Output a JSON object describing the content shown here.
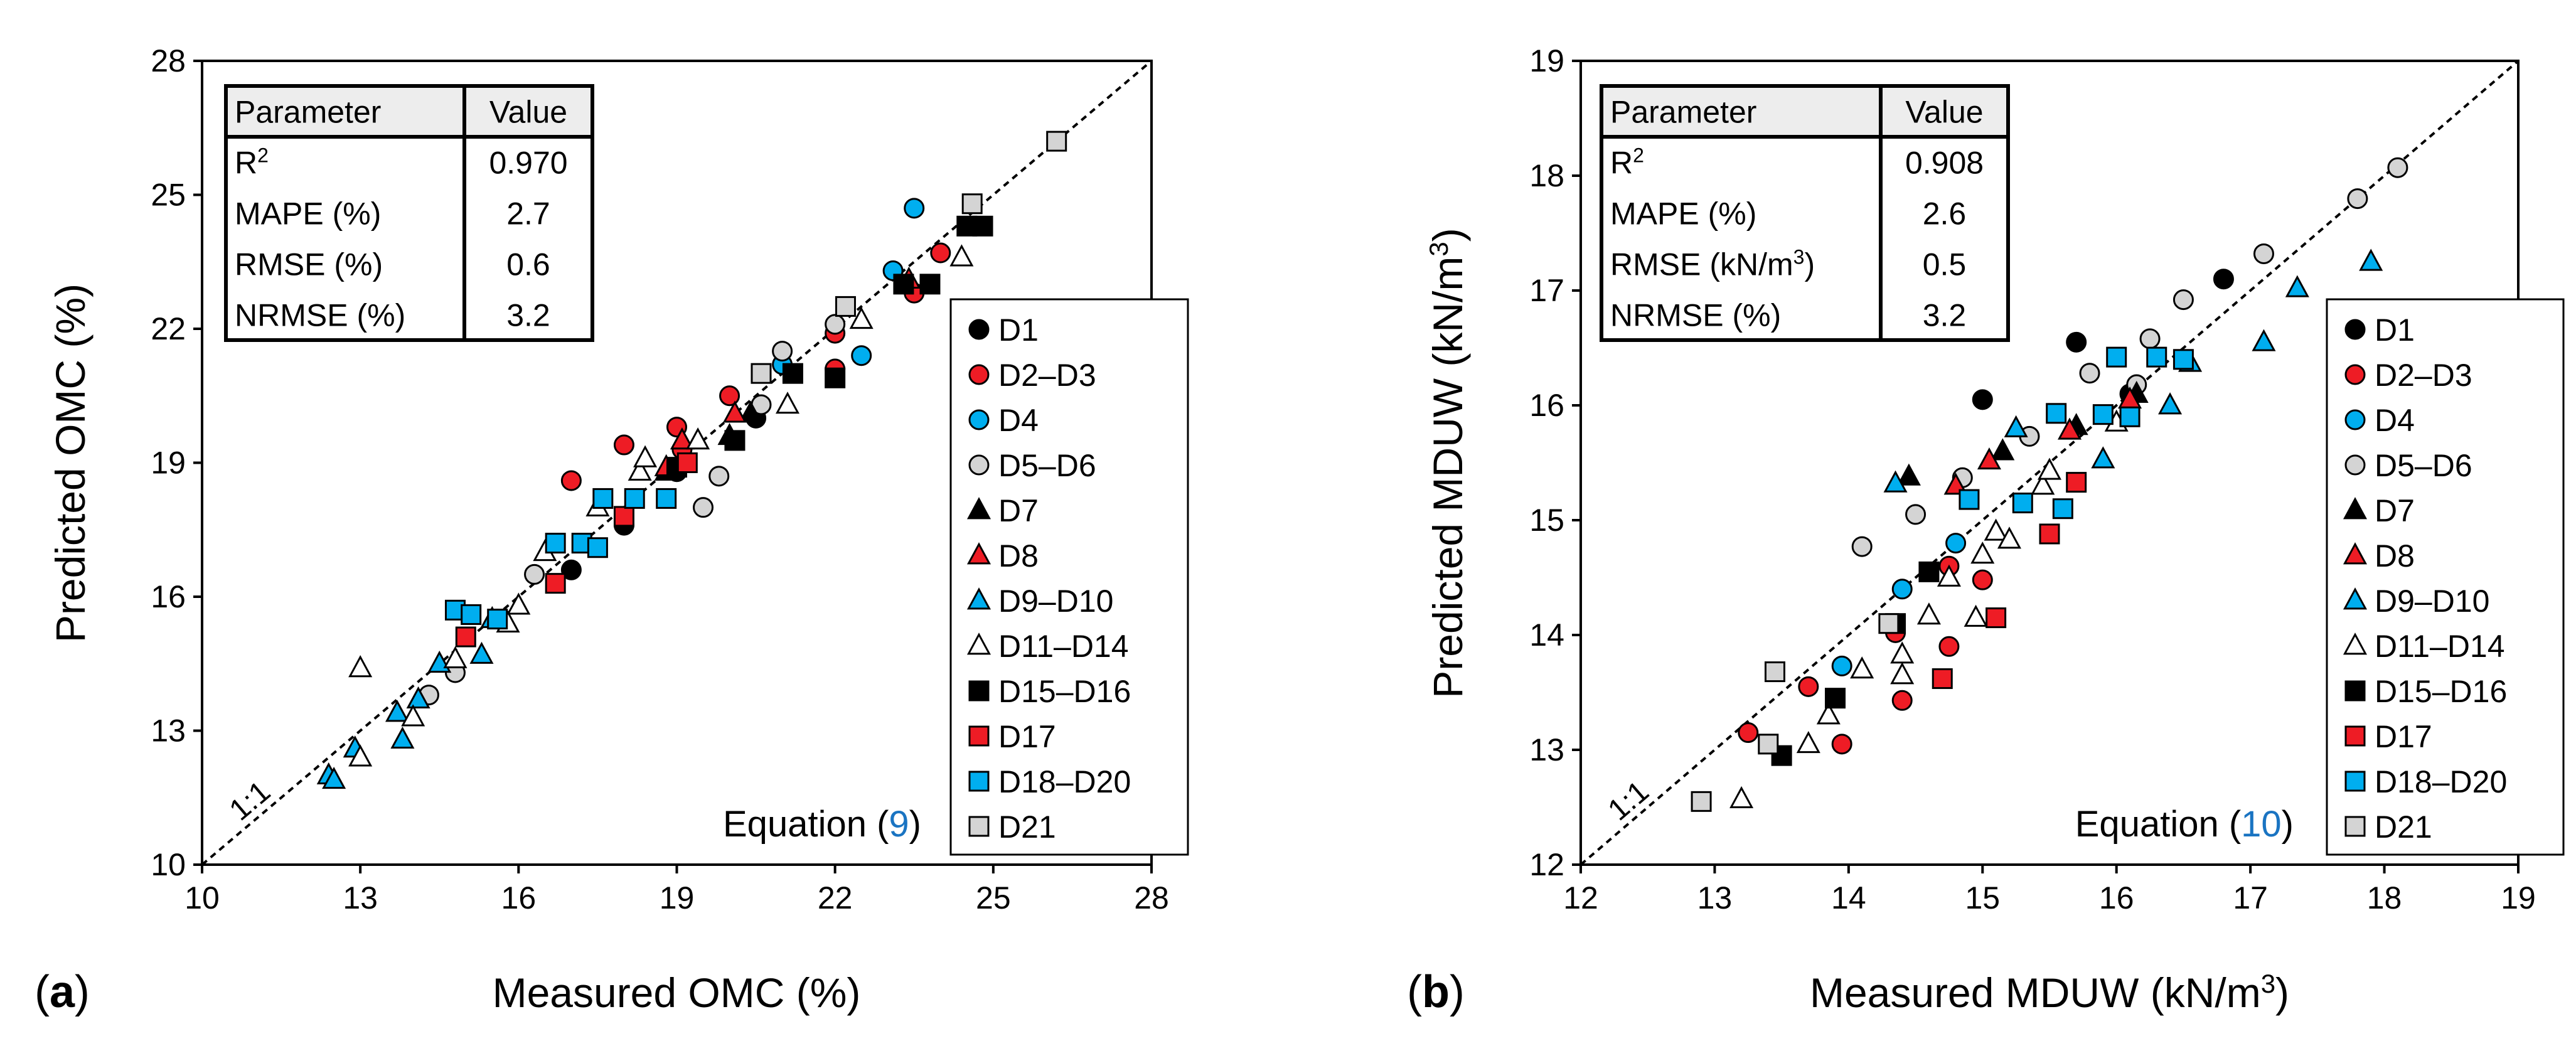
{
  "colors": {
    "black": "#000000",
    "red": "#ee1c25",
    "blue": "#00aeef",
    "grey": "#d4d4d4",
    "white": "#ffffff",
    "table_header": "#ededed"
  },
  "chart_data": [
    {
      "type": "scatter",
      "panel_label": "(a)",
      "panel_label_bold": "a",
      "xlabel": "Measured OMC (%)",
      "ylabel": "Predicted OMC (%)",
      "xlim": [
        10,
        28
      ],
      "ylim": [
        10,
        28
      ],
      "xticks": [
        "10",
        "13",
        "16",
        "19",
        "22",
        "25",
        "28"
      ],
      "yticks": [
        "10",
        "13",
        "16",
        "19",
        "22",
        "25",
        "28"
      ],
      "tick_values": [
        10,
        13,
        16,
        19,
        22,
        25,
        28
      ],
      "reference_line": "1:1",
      "equation_prefix": "Equation (",
      "equation_number": "9",
      "equation_suffix": ")",
      "table": {
        "header": [
          "Parameter",
          "Value"
        ],
        "rows": [
          {
            "param": "R",
            "sup": "2",
            "suffix": "",
            "value": "0.970"
          },
          {
            "param": "MAPE (%)",
            "sup": "",
            "suffix": "",
            "value": "2.7"
          },
          {
            "param": "RMSE (%)",
            "sup": "",
            "suffix": "",
            "value": "0.6"
          },
          {
            "param": "NRMSE (%)",
            "sup": "",
            "suffix": "",
            "value": "3.2"
          }
        ]
      },
      "legend": [
        {
          "label": "D1",
          "shape": "circle",
          "color": "black"
        },
        {
          "label": "D2–D3",
          "shape": "circle",
          "color": "red"
        },
        {
          "label": "D4",
          "shape": "circle",
          "color": "blue"
        },
        {
          "label": "D5–D6",
          "shape": "circle",
          "color": "grey"
        },
        {
          "label": "D7",
          "shape": "triangle",
          "color": "black"
        },
        {
          "label": "D8",
          "shape": "triangle",
          "color": "red"
        },
        {
          "label": "D9–D10",
          "shape": "triangle",
          "color": "blue"
        },
        {
          "label": "D11–D14",
          "shape": "triangle",
          "color": "white"
        },
        {
          "label": "D15–D16",
          "shape": "square",
          "color": "black"
        },
        {
          "label": "D17",
          "shape": "square",
          "color": "red"
        },
        {
          "label": "D18–D20",
          "shape": "square",
          "color": "blue"
        },
        {
          "label": "D21",
          "shape": "square",
          "color": "grey"
        }
      ],
      "series": [
        {
          "name": "D1",
          "points": [
            [
              18.0,
              17.6
            ],
            [
              17.0,
              16.6
            ],
            [
              19.0,
              18.8
            ],
            [
              20.5,
              20.0
            ]
          ]
        },
        {
          "name": "D2–D3",
          "points": [
            [
              17.0,
              18.6
            ],
            [
              18.0,
              19.4
            ],
            [
              19.0,
              19.8
            ],
            [
              20.0,
              20.5
            ],
            [
              22.0,
              21.1
            ],
            [
              22.0,
              21.9
            ],
            [
              23.5,
              22.8
            ],
            [
              24.0,
              23.7
            ],
            [
              19.1,
              19.3
            ]
          ]
        },
        {
          "name": "D4",
          "points": [
            [
              23.5,
              24.7
            ],
            [
              23.1,
              23.3
            ],
            [
              22.5,
              21.4
            ],
            [
              21.0,
              21.2
            ]
          ]
        },
        {
          "name": "D5–D6",
          "points": [
            [
              14.3,
              13.8
            ],
            [
              14.8,
              14.3
            ],
            [
              15.6,
              15.5
            ],
            [
              16.3,
              16.5
            ],
            [
              19.5,
              18.0
            ],
            [
              19.8,
              18.7
            ],
            [
              20.6,
              20.3
            ],
            [
              21.0,
              21.5
            ],
            [
              22.0,
              22.1
            ]
          ]
        },
        {
          "name": "D7",
          "points": [
            [
              18.8,
              18.8
            ],
            [
              20.0,
              19.6
            ],
            [
              20.4,
              20.1
            ]
          ]
        },
        {
          "name": "D8",
          "points": [
            [
              18.8,
              18.9
            ],
            [
              19.1,
              19.5
            ],
            [
              20.1,
              20.1
            ],
            [
              23.4,
              23.1
            ]
          ]
        },
        {
          "name": "D9–D10",
          "points": [
            [
              12.4,
              12.0
            ],
            [
              12.5,
              11.9
            ],
            [
              12.9,
              12.6
            ],
            [
              13.8,
              12.8
            ],
            [
              13.7,
              13.4
            ],
            [
              14.1,
              13.7
            ],
            [
              14.5,
              14.5
            ],
            [
              15.3,
              14.7
            ],
            [
              15.5,
              15.5
            ]
          ]
        },
        {
          "name": "D11–D14",
          "points": [
            [
              13.0,
              14.4
            ],
            [
              13.0,
              12.4
            ],
            [
              14.0,
              13.3
            ],
            [
              14.8,
              14.6
            ],
            [
              15.8,
              15.4
            ],
            [
              16.0,
              15.8
            ],
            [
              16.5,
              17.0
            ],
            [
              17.5,
              18.0
            ],
            [
              18.3,
              18.8
            ],
            [
              18.4,
              19.1
            ],
            [
              19.4,
              19.5
            ],
            [
              21.1,
              20.3
            ],
            [
              22.5,
              22.2
            ],
            [
              24.4,
              23.6
            ]
          ]
        },
        {
          "name": "D15–D16",
          "points": [
            [
              19.0,
              18.9
            ],
            [
              20.1,
              19.5
            ],
            [
              21.2,
              21.0
            ],
            [
              22.0,
              20.9
            ],
            [
              23.3,
              23.0
            ],
            [
              23.8,
              23.0
            ],
            [
              24.5,
              24.3
            ],
            [
              24.8,
              24.3
            ]
          ]
        },
        {
          "name": "D17",
          "points": [
            [
              15.0,
              15.1
            ],
            [
              16.7,
              16.3
            ],
            [
              18.0,
              17.8
            ],
            [
              19.2,
              19.0
            ]
          ]
        },
        {
          "name": "D18–D20",
          "points": [
            [
              14.8,
              15.7
            ],
            [
              15.1,
              15.6
            ],
            [
              15.6,
              15.5
            ],
            [
              16.7,
              17.2
            ],
            [
              17.2,
              17.2
            ],
            [
              17.5,
              17.1
            ],
            [
              17.6,
              18.2
            ],
            [
              18.2,
              18.2
            ],
            [
              18.8,
              18.2
            ]
          ]
        },
        {
          "name": "D21",
          "points": [
            [
              20.6,
              21.0
            ],
            [
              22.2,
              22.5
            ],
            [
              24.6,
              24.8
            ],
            [
              26.2,
              26.2
            ]
          ]
        }
      ]
    },
    {
      "type": "scatter",
      "panel_label": "(b)",
      "panel_label_bold": "b",
      "xlabel": "Measured MDUW (kN/m",
      "xlabel_sup": "3",
      "xlabel_end": ")",
      "ylabel": "Predicted MDUW (kN/m",
      "ylabel_sup": "3",
      "ylabel_end": ")",
      "xlim": [
        12,
        19
      ],
      "ylim": [
        12,
        19
      ],
      "xticks": [
        "12",
        "13",
        "14",
        "15",
        "16",
        "17",
        "18",
        "19"
      ],
      "yticks": [
        "12",
        "13",
        "14",
        "15",
        "16",
        "17",
        "18",
        "19"
      ],
      "tick_values": [
        12,
        13,
        14,
        15,
        16,
        17,
        18,
        19
      ],
      "reference_line": "1:1",
      "equation_prefix": "Equation (",
      "equation_number": "10",
      "equation_suffix": ")",
      "table": {
        "header": [
          "Parameter",
          "Value"
        ],
        "rows": [
          {
            "param": "R",
            "sup": "2",
            "suffix": "",
            "value": "0.908"
          },
          {
            "param": "MAPE (%)",
            "sup": "",
            "suffix": "",
            "value": "2.6"
          },
          {
            "param": "RMSE (kN/m",
            "sup": "3",
            "suffix": ")",
            "value": "0.5"
          },
          {
            "param": "NRMSE (%)",
            "sup": "",
            "suffix": "",
            "value": "3.2"
          }
        ]
      },
      "legend": [
        {
          "label": "D1",
          "shape": "circle",
          "color": "black"
        },
        {
          "label": "D2–D3",
          "shape": "circle",
          "color": "red"
        },
        {
          "label": "D4",
          "shape": "circle",
          "color": "blue"
        },
        {
          "label": "D5–D6",
          "shape": "circle",
          "color": "grey"
        },
        {
          "label": "D7",
          "shape": "triangle",
          "color": "black"
        },
        {
          "label": "D8",
          "shape": "triangle",
          "color": "red"
        },
        {
          "label": "D9–D10",
          "shape": "triangle",
          "color": "blue"
        },
        {
          "label": "D11–D14",
          "shape": "triangle",
          "color": "white"
        },
        {
          "label": "D15–D16",
          "shape": "square",
          "color": "black"
        },
        {
          "label": "D17",
          "shape": "square",
          "color": "red"
        },
        {
          "label": "D18–D20",
          "shape": "square",
          "color": "blue"
        },
        {
          "label": "D21",
          "shape": "square",
          "color": "grey"
        }
      ],
      "series": [
        {
          "name": "D1",
          "points": [
            [
              15.0,
              16.05
            ],
            [
              15.7,
              16.55
            ],
            [
              16.8,
              17.1
            ],
            [
              16.1,
              16.1
            ]
          ]
        },
        {
          "name": "D2–D3",
          "points": [
            [
              13.25,
              13.15
            ],
            [
              13.7,
              13.55
            ],
            [
              13.95,
              13.05
            ],
            [
              14.4,
              13.43
            ],
            [
              14.35,
              14.02
            ],
            [
              14.75,
              14.6
            ],
            [
              14.75,
              13.9
            ],
            [
              15.0,
              14.48
            ]
          ]
        },
        {
          "name": "D4",
          "points": [
            [
              13.95,
              13.73
            ],
            [
              14.4,
              14.4
            ],
            [
              14.8,
              14.8
            ]
          ]
        },
        {
          "name": "D5–D6",
          "points": [
            [
              14.1,
              14.77
            ],
            [
              14.5,
              15.05
            ],
            [
              14.85,
              15.37
            ],
            [
              15.35,
              15.73
            ],
            [
              15.8,
              16.28
            ],
            [
              16.15,
              16.18
            ],
            [
              16.25,
              16.58
            ],
            [
              16.5,
              16.92
            ],
            [
              17.1,
              17.32
            ],
            [
              17.8,
              17.8
            ],
            [
              18.1,
              18.07
            ]
          ]
        },
        {
          "name": "D7",
          "points": [
            [
              14.45,
              15.38
            ],
            [
              15.15,
              15.6
            ],
            [
              15.7,
              15.82
            ],
            [
              16.15,
              16.1
            ]
          ]
        },
        {
          "name": "D8",
          "points": [
            [
              14.8,
              15.3
            ],
            [
              15.05,
              15.52
            ],
            [
              15.65,
              15.78
            ],
            [
              16.1,
              16.05
            ]
          ]
        },
        {
          "name": "D9–D10",
          "points": [
            [
              14.35,
              15.32
            ],
            [
              15.25,
              15.8
            ],
            [
              15.9,
              15.53
            ],
            [
              16.4,
              16.0
            ],
            [
              16.55,
              16.37
            ],
            [
              17.1,
              16.55
            ],
            [
              17.35,
              17.02
            ],
            [
              17.9,
              17.25
            ]
          ]
        },
        {
          "name": "D11–D14",
          "points": [
            [
              13.2,
              12.57
            ],
            [
              13.7,
              13.05
            ],
            [
              13.85,
              13.3
            ],
            [
              14.1,
              13.7
            ],
            [
              14.4,
              13.65
            ],
            [
              14.4,
              13.83
            ],
            [
              14.6,
              14.17
            ],
            [
              14.75,
              14.5
            ],
            [
              14.95,
              14.15
            ],
            [
              15.0,
              14.7
            ],
            [
              15.1,
              14.9
            ],
            [
              15.2,
              14.83
            ],
            [
              15.45,
              15.3
            ],
            [
              15.5,
              15.43
            ],
            [
              16.0,
              15.85
            ]
          ]
        },
        {
          "name": "D15–D16",
          "points": [
            [
              13.5,
              12.95
            ],
            [
              13.9,
              13.45
            ],
            [
              14.35,
              14.1
            ],
            [
              14.6,
              14.55
            ]
          ]
        },
        {
          "name": "D17",
          "points": [
            [
              14.7,
              13.62
            ],
            [
              15.1,
              14.15
            ],
            [
              15.5,
              14.88
            ],
            [
              15.7,
              15.33
            ]
          ]
        },
        {
          "name": "D18–D20",
          "points": [
            [
              14.9,
              15.18
            ],
            [
              15.3,
              15.15
            ],
            [
              15.55,
              15.93
            ],
            [
              15.6,
              15.1
            ],
            [
              15.9,
              15.92
            ],
            [
              16.0,
              16.42
            ],
            [
              16.1,
              15.9
            ],
            [
              16.3,
              16.42
            ],
            [
              16.5,
              16.4
            ]
          ]
        },
        {
          "name": "D21",
          "points": [
            [
              12.9,
              12.55
            ],
            [
              13.4,
              13.05
            ],
            [
              13.45,
              13.68
            ],
            [
              14.3,
              14.1
            ]
          ]
        }
      ]
    }
  ]
}
